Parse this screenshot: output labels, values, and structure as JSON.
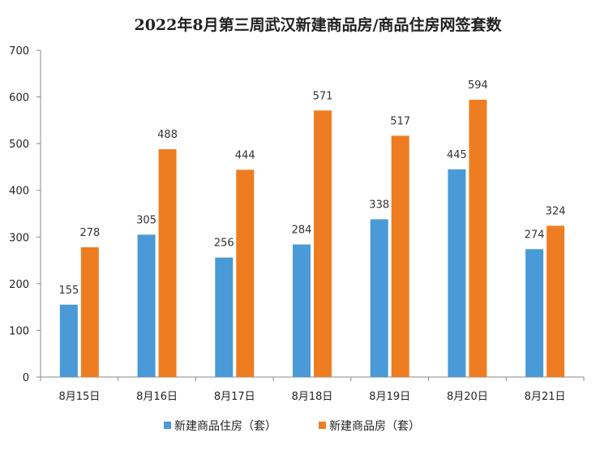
{
  "chart_data": {
    "type": "bar",
    "title": "2022年8月第三周武汉新建商品房/商品住房网签套数",
    "xlabel": "",
    "ylabel": "",
    "categories": [
      "8月15日",
      "8月16日",
      "8月17日",
      "8月18日",
      "8月19日",
      "8月20日",
      "8月21日"
    ],
    "series": [
      {
        "name": "新建商品住房（套）",
        "color": "#4a9ad8",
        "values": [
          155,
          305,
          256,
          284,
          338,
          445,
          274
        ]
      },
      {
        "name": "新建商品房（套）",
        "color": "#ee7d22",
        "values": [
          278,
          488,
          444,
          571,
          517,
          594,
          324
        ]
      }
    ],
    "ylim": [
      0,
      700
    ],
    "yticks": [
      0,
      100,
      200,
      300,
      400,
      500,
      600,
      700
    ],
    "grid": false,
    "legend": "bottom"
  }
}
